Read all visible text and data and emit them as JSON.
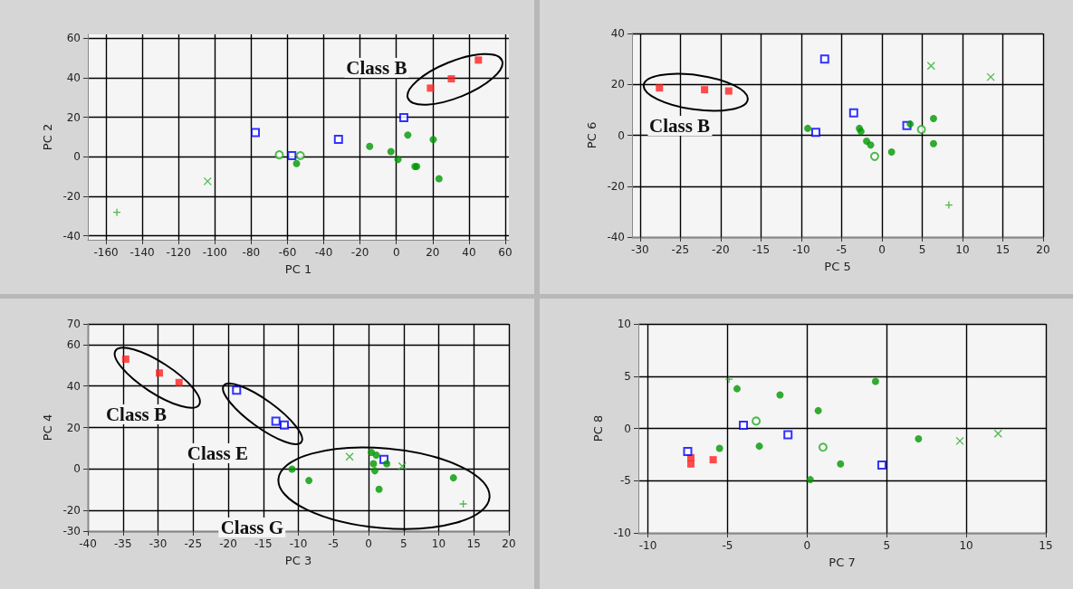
{
  "chart_data": [
    {
      "type": "scatter",
      "xlabel": "PC 1",
      "ylabel": "PC 2",
      "xlim": [
        -170,
        62
      ],
      "ylim": [
        -42,
        62
      ],
      "xticks": [
        -160,
        -140,
        -120,
        -100,
        -80,
        -60,
        -40,
        -20,
        0,
        20,
        40,
        60
      ],
      "yticks": [
        -40,
        -20,
        0,
        20,
        40,
        60
      ],
      "grid": true,
      "annotations": [
        "Class B"
      ],
      "series": [
        {
          "color": "#ff2020",
          "marker": "square",
          "x": [
            18.8,
            30.3,
            45.2
          ],
          "values": [
            34.8,
            39.5,
            49
          ]
        },
        {
          "color": "#0000ff",
          "marker": "square",
          "x": [
            -77.7,
            -57.6,
            -31.9,
            4.1
          ],
          "values": [
            12.3,
            0.6,
            8.9,
            19.8
          ]
        },
        {
          "color": "#009900",
          "marker": "circle",
          "x": [
            -55,
            -14.7,
            -3,
            0.9,
            6.3,
            10.2,
            11.2,
            20.3,
            23.5
          ],
          "values": [
            -3.4,
            5.3,
            2.7,
            -1.3,
            11,
            -4.9,
            -4.9,
            8.7,
            -11.1
          ]
        },
        {
          "color": "#22aa22",
          "marker": "circle",
          "x": [
            -64.5,
            -52.9
          ],
          "values": [
            1,
            0.6
          ]
        },
        {
          "color": "#22aa22",
          "marker": "cross",
          "x": [
            -104
          ],
          "values": [
            -12.4
          ]
        },
        {
          "color": "#22aa22",
          "marker": "plus",
          "x": [
            -154
          ],
          "values": [
            -28.1
          ]
        }
      ]
    },
    {
      "type": "scatter",
      "xlabel": "PC 5",
      "ylabel": "PC 6",
      "xlim": [
        -31,
        20
      ],
      "ylim": [
        -40,
        40
      ],
      "xticks": [
        -30,
        -25,
        -20,
        -15,
        -10,
        -5,
        0,
        5,
        10,
        15,
        20
      ],
      "yticks": [
        -40,
        -20,
        0,
        20,
        40
      ],
      "grid": true,
      "annotations": [
        "Class B"
      ],
      "series": [
        {
          "color": "#ff2020",
          "marker": "square",
          "x": [
            -27.6,
            -22,
            -19
          ],
          "values": [
            18.6,
            17.9,
            17.4
          ]
        },
        {
          "color": "#0000ff",
          "marker": "square",
          "x": [
            -7.1,
            -8.2,
            -3.5,
            3.1
          ],
          "values": [
            30,
            1.2,
            8.8,
            3.8
          ]
        },
        {
          "color": "#009900",
          "marker": "circle",
          "x": [
            -9.2,
            -2.8,
            -2.6,
            -1.9,
            -1.4,
            1.2,
            3.5,
            6.4,
            6.4
          ],
          "values": [
            2.7,
            2.7,
            1.5,
            -2.3,
            -3.8,
            -6.6,
            4.4,
            6.6,
            -3.3
          ]
        },
        {
          "color": "#22aa22",
          "marker": "circle",
          "x": [
            -0.9,
            4.9
          ],
          "values": [
            -8.3,
            2.3
          ]
        },
        {
          "color": "#22aa22",
          "marker": "cross",
          "x": [
            6.1,
            13.5
          ],
          "values": [
            27.3,
            22.9
          ]
        },
        {
          "color": "#22aa22",
          "marker": "plus",
          "x": [
            8.3
          ],
          "values": [
            -27.4
          ]
        }
      ]
    },
    {
      "type": "scatter",
      "xlabel": "PC 3",
      "ylabel": "PC 4",
      "xlim": [
        -40,
        20
      ],
      "ylim": [
        -30,
        70
      ],
      "xticks": [
        -40,
        -35,
        -30,
        -25,
        -20,
        -15,
        -10,
        -5,
        0,
        5,
        10,
        15,
        20
      ],
      "yticks": [
        -30,
        -20,
        0,
        20,
        40,
        60,
        70
      ],
      "grid": true,
      "annotations": [
        "Class B",
        "Class E",
        "Class G"
      ],
      "series": [
        {
          "color": "#ff2020",
          "marker": "square",
          "x": [
            -34.6,
            -29.8,
            -27
          ],
          "values": [
            53,
            46.3,
            41.7
          ]
        },
        {
          "color": "#0000ff",
          "marker": "square",
          "x": [
            -18.8,
            -13.2,
            -12,
            2.2
          ],
          "values": [
            38,
            23.1,
            21.2,
            4.6
          ]
        },
        {
          "color": "#009900",
          "marker": "circle",
          "x": [
            -10.9,
            -8.5,
            0.4,
            1.1,
            0.7,
            0.9,
            2.6,
            1.5,
            12.1
          ],
          "values": [
            -0.1,
            -5.6,
            8,
            6.7,
            2.5,
            -0.9,
            2.5,
            -9.8,
            -4.3
          ]
        },
        {
          "color": "#22aa22",
          "marker": "cross",
          "x": [
            -2.7,
            4.8
          ],
          "values": [
            5.9,
            1.3
          ]
        },
        {
          "color": "#22aa22",
          "marker": "plus",
          "x": [
            13.5
          ],
          "values": [
            -16.9
          ]
        }
      ]
    },
    {
      "type": "scatter",
      "xlabel": "PC 7",
      "ylabel": "PC 8",
      "xlim": [
        -10.6,
        15
      ],
      "ylim": [
        -10,
        10
      ],
      "xticks": [
        -10,
        -5,
        0,
        5,
        10,
        15
      ],
      "yticks": [
        -10,
        -5,
        0,
        5,
        10
      ],
      "grid": true,
      "series": [
        {
          "color": "#ff2020",
          "marker": "square",
          "x": [
            -7.3,
            -7.3,
            -5.9
          ],
          "values": [
            -2.8,
            -3.4,
            -3
          ]
        },
        {
          "color": "#0000ff",
          "marker": "square",
          "x": [
            -7.5,
            -4,
            -1.2,
            4.7
          ],
          "values": [
            -2.2,
            0.3,
            -0.6,
            -3.5
          ]
        },
        {
          "color": "#009900",
          "marker": "circle",
          "x": [
            -5.5,
            -4.4,
            -3,
            -1.7,
            0.7,
            0.2,
            2.1,
            4.3,
            7
          ],
          "values": [
            -1.9,
            3.8,
            -1.7,
            3.2,
            1.7,
            -4.9,
            -3.4,
            4.5,
            -1
          ]
        },
        {
          "color": "#22aa22",
          "marker": "circle",
          "x": [
            -3.2,
            1
          ],
          "values": [
            0.7,
            -1.8
          ]
        },
        {
          "color": "#22aa22",
          "marker": "cross",
          "x": [
            9.6,
            12
          ],
          "values": [
            -1.2,
            -0.5
          ]
        },
        {
          "color": "#22aa22",
          "marker": "plus",
          "x": [
            -4.9
          ],
          "values": [
            4.7
          ]
        }
      ]
    }
  ]
}
